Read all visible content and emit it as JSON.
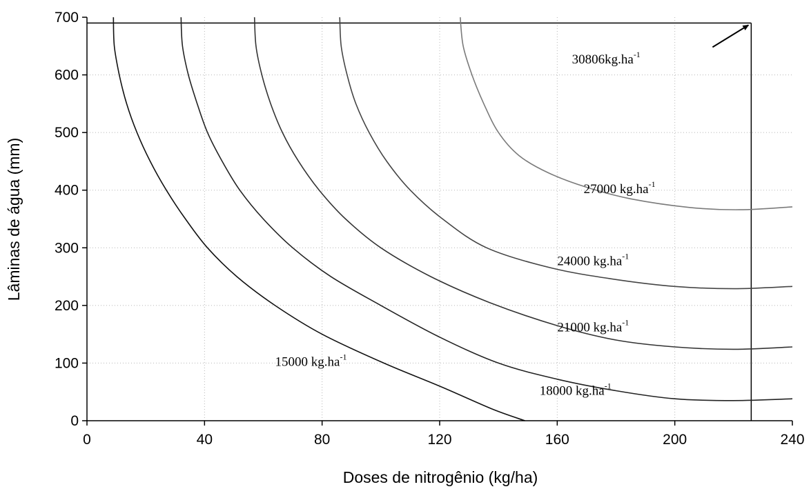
{
  "chart_data": {
    "type": "line",
    "title": "",
    "xlabel": "Doses de nitrogênio (kg/ha)",
    "ylabel": "Lâminas de água (mm)",
    "xlim": [
      0,
      240
    ],
    "ylim": [
      0,
      700
    ],
    "xticks": [
      "0",
      "40",
      "80",
      "120",
      "160",
      "200",
      "240"
    ],
    "yticks": [
      "0",
      "100",
      "200",
      "300",
      "400",
      "500",
      "600",
      "700"
    ],
    "grid": true,
    "series": [
      {
        "name": "15000 kg.ha",
        "label_main": "15000 kg.ha",
        "label_sup": "-1",
        "color": "#111111",
        "points": [
          [
            9,
            700
          ],
          [
            9.3,
            650
          ],
          [
            11,
            600
          ],
          [
            13.5,
            550
          ],
          [
            17,
            500
          ],
          [
            21.5,
            450
          ],
          [
            27,
            400
          ],
          [
            33.5,
            350
          ],
          [
            41,
            300
          ],
          [
            51,
            250
          ],
          [
            64,
            200
          ],
          [
            80,
            150
          ],
          [
            101,
            100
          ],
          [
            120,
            60
          ],
          [
            138,
            20
          ],
          [
            149,
            0
          ]
        ]
      },
      {
        "name": "18000 kg.ha",
        "label_main": "18000 kg.ha",
        "label_sup": "-1",
        "color": "#222222",
        "points": [
          [
            32,
            700
          ],
          [
            32.5,
            650
          ],
          [
            34.5,
            600
          ],
          [
            37.5,
            550
          ],
          [
            41,
            500
          ],
          [
            46,
            450
          ],
          [
            52,
            400
          ],
          [
            60,
            350
          ],
          [
            70,
            300
          ],
          [
            83,
            250
          ],
          [
            100,
            200
          ],
          [
            120,
            145
          ],
          [
            140,
            100
          ],
          [
            160,
            72
          ],
          [
            180,
            52
          ],
          [
            200,
            38
          ],
          [
            220,
            35
          ],
          [
            240,
            38
          ]
        ]
      },
      {
        "name": "21000 kg.ha",
        "label_main": "21000 kg.ha",
        "label_sup": "-1",
        "color": "#333333",
        "points": [
          [
            57,
            700
          ],
          [
            57.5,
            650
          ],
          [
            59.5,
            600
          ],
          [
            62.5,
            550
          ],
          [
            66.5,
            500
          ],
          [
            72,
            450
          ],
          [
            79,
            400
          ],
          [
            88,
            350
          ],
          [
            100,
            300
          ],
          [
            117,
            250
          ],
          [
            137,
            205
          ],
          [
            160,
            165
          ],
          [
            180,
            140
          ],
          [
            200,
            128
          ],
          [
            220,
            124
          ],
          [
            240,
            128
          ]
        ]
      },
      {
        "name": "24000 kg.ha",
        "label_main": "24000 kg.ha",
        "label_sup": "-1",
        "color": "#444444",
        "points": [
          [
            86,
            700
          ],
          [
            86.5,
            650
          ],
          [
            88.5,
            600
          ],
          [
            91.5,
            550
          ],
          [
            96,
            500
          ],
          [
            102,
            450
          ],
          [
            110,
            400
          ],
          [
            121,
            350
          ],
          [
            136,
            300
          ],
          [
            158,
            265
          ],
          [
            180,
            245
          ],
          [
            200,
            233
          ],
          [
            220,
            229
          ],
          [
            240,
            233
          ]
        ]
      },
      {
        "name": "27000 kg.ha",
        "label_main": "27000 kg.ha",
        "label_sup": "-1",
        "color": "#7a7a7a",
        "points": [
          [
            127,
            700
          ],
          [
            128,
            650
          ],
          [
            131,
            600
          ],
          [
            135,
            550
          ],
          [
            140,
            500
          ],
          [
            147,
            460
          ],
          [
            157,
            430
          ],
          [
            170,
            405
          ],
          [
            185,
            385
          ],
          [
            205,
            370
          ],
          [
            222,
            366
          ],
          [
            240,
            371
          ]
        ]
      }
    ],
    "optimum": {
      "label_main": "30806kg.ha",
      "label_sup": "-1",
      "x": 226,
      "y": 690
    }
  }
}
